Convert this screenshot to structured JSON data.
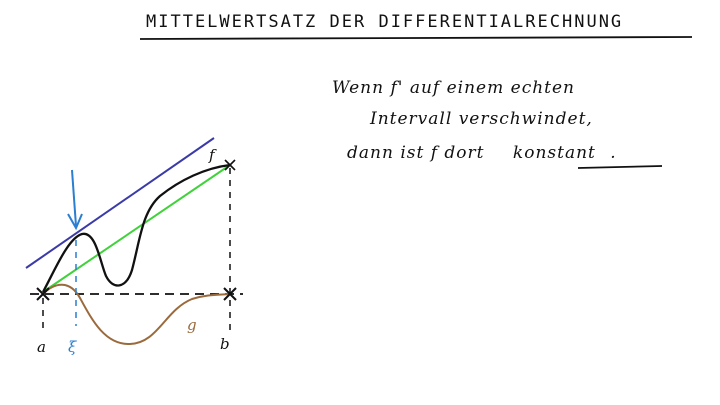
{
  "title": "MITTELWERTSATZ DER DIFFERENTIALRECHNUNG",
  "note": {
    "line1": "Wenn f' auf einem echten",
    "line2": "Intervall verschwindet,",
    "line3_prefix": "dann ist f dort",
    "line3_emphasis": "konstant",
    "line3_suffix": "."
  },
  "diagram": {
    "label_f": "f",
    "label_g": "g",
    "label_a": "a",
    "label_b": "b",
    "label_xi": "ξ"
  },
  "colors": {
    "ink": "#111111",
    "tangent": "#3a3aa8",
    "secant": "#3fd23a",
    "g_curve": "#9b6a3c",
    "xi_marker": "#2a7fd0"
  }
}
